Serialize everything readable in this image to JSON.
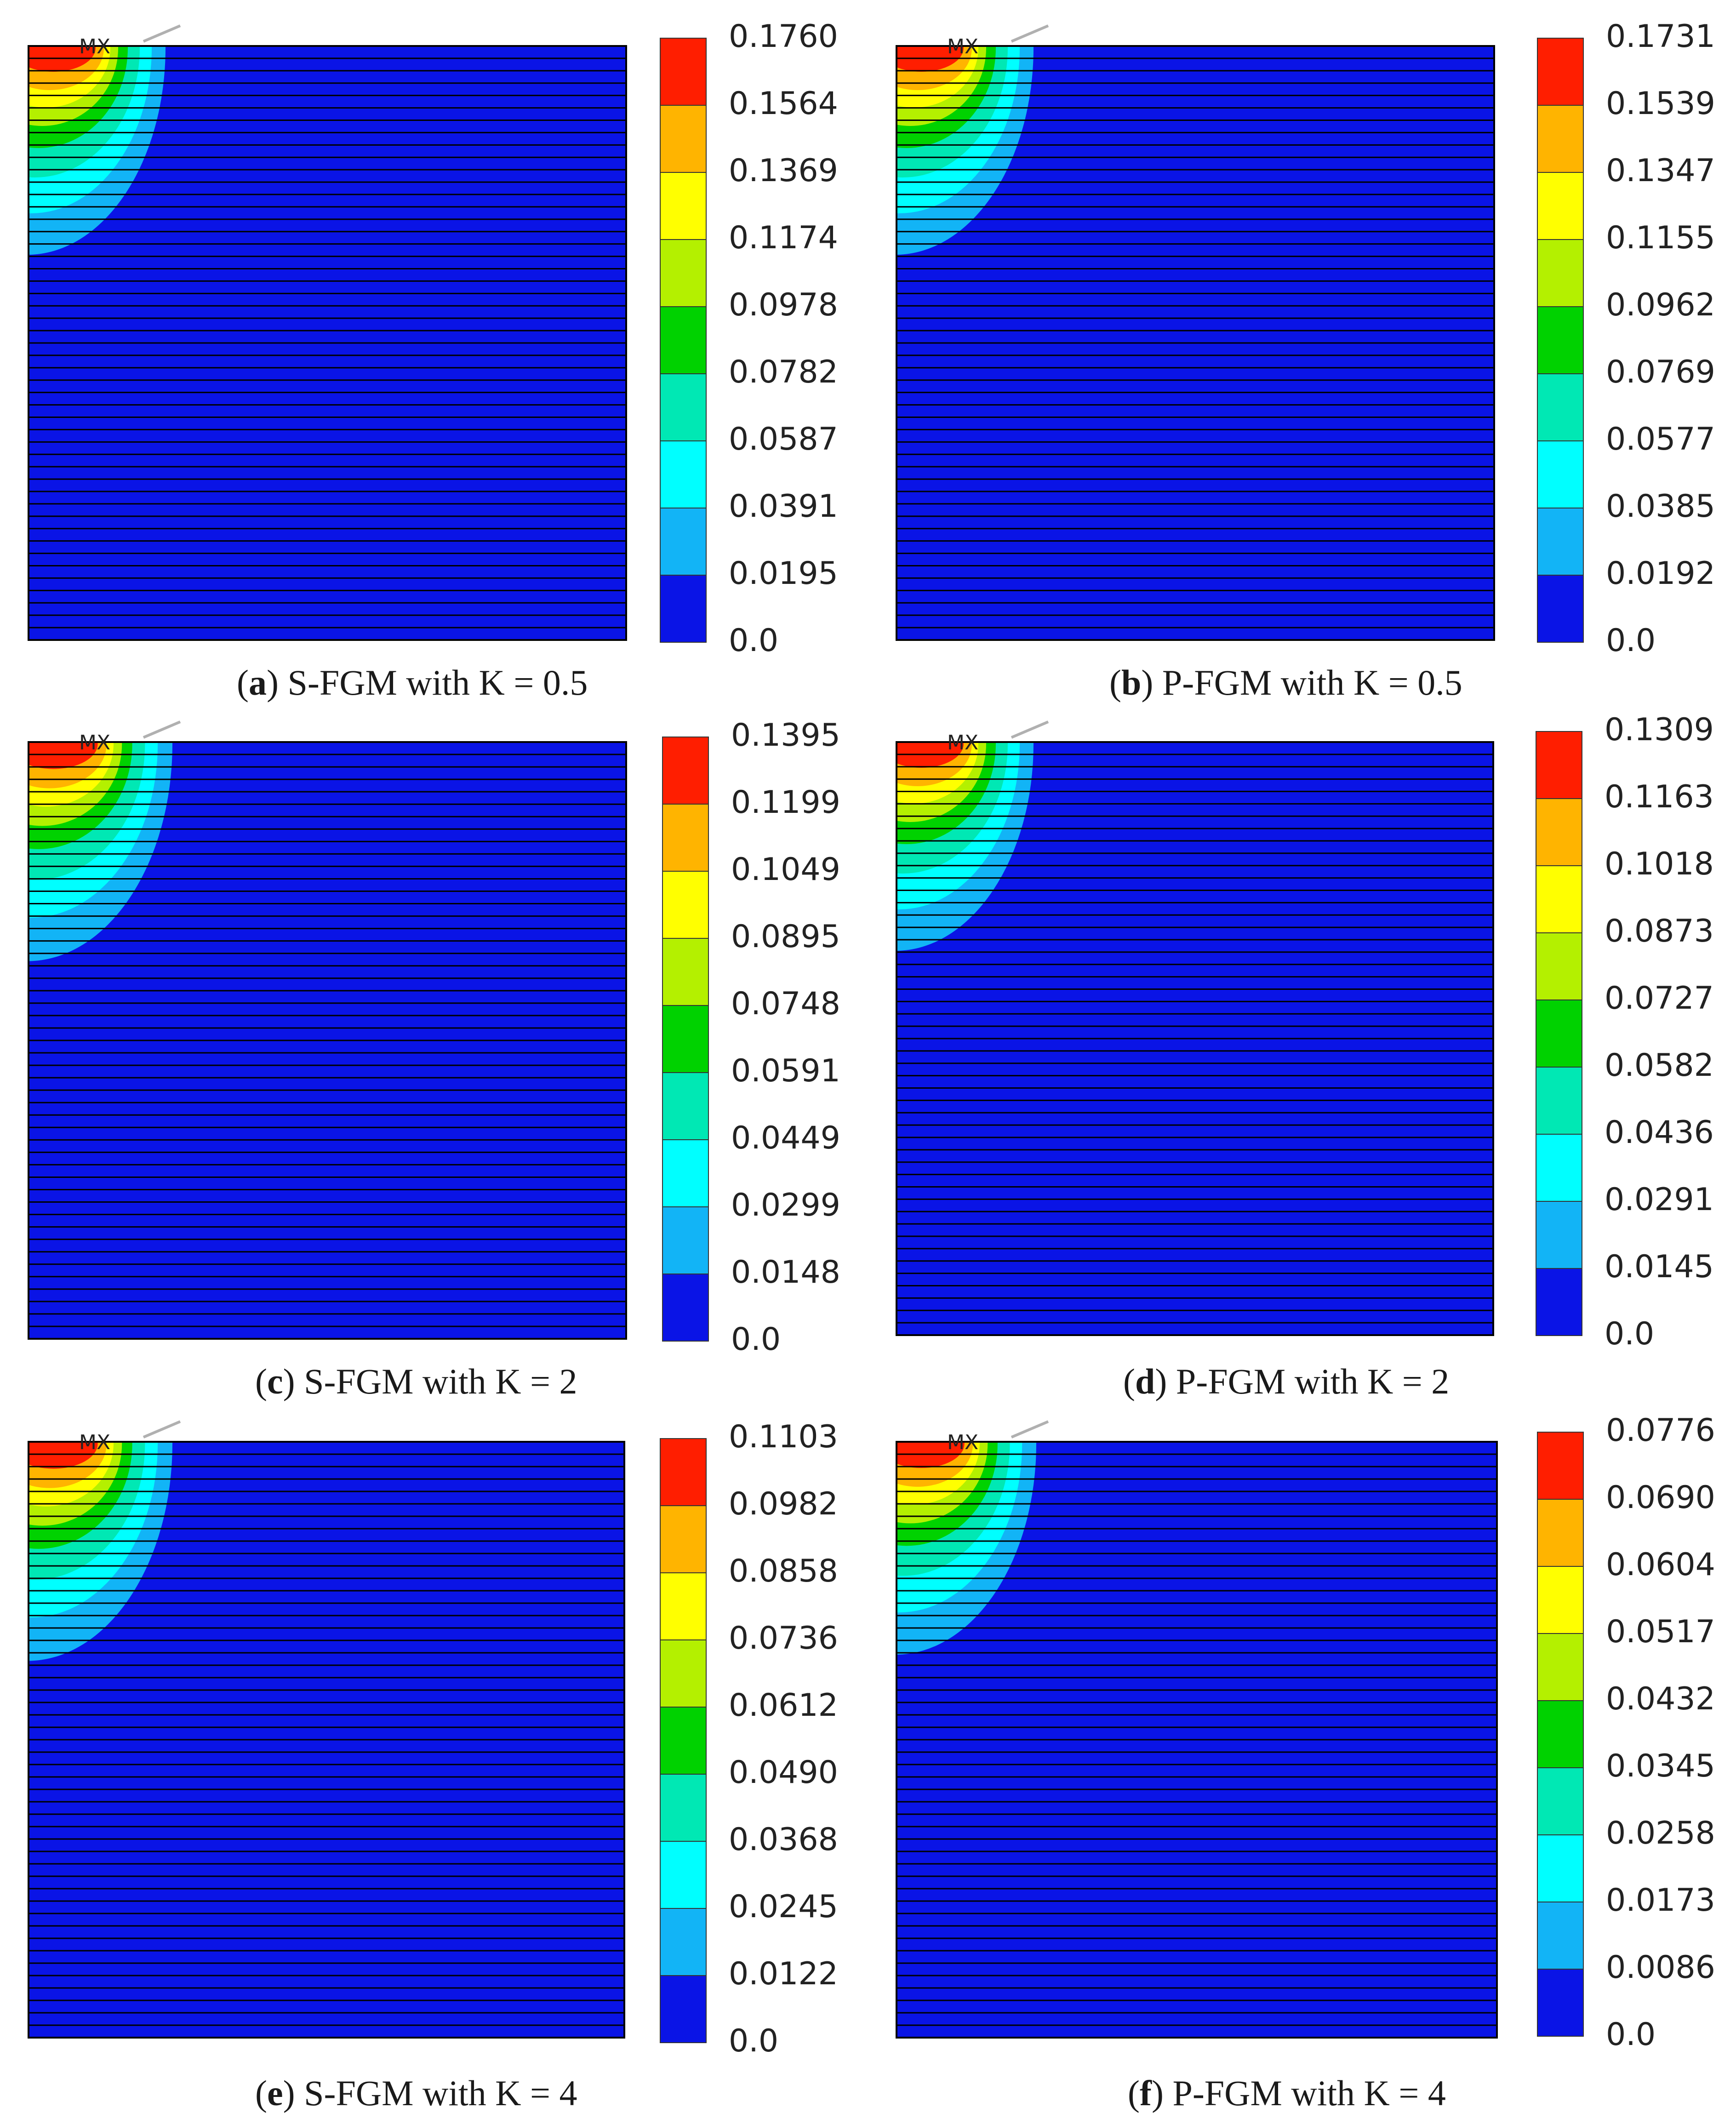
{
  "colors": {
    "background": "#ffffff",
    "mesh_fill": "#0a14e6",
    "mesh_line": "#000000",
    "levels": [
      "#0a14e6",
      "#12b4f6",
      "#00ffff",
      "#00e8b4",
      "#00d200",
      "#b4f000",
      "#ffff00",
      "#ffb400",
      "#ff1e00"
    ]
  },
  "marker_text": "MX",
  "panels": [
    {
      "id": "a",
      "letter": "a",
      "caption_rest": ") S-FGM with K = 0.5",
      "legend_values": [
        "0.1760",
        "0.1564",
        "0.1369",
        "0.1174",
        "0.0978",
        "0.0782",
        "0.0587",
        "0.0391",
        "0.0195",
        "0.0"
      ]
    },
    {
      "id": "b",
      "letter": "b",
      "caption_rest": ") P-FGM with K = 0.5",
      "legend_values": [
        "0.1731",
        "0.1539",
        "0.1347",
        "0.1155",
        "0.0962",
        "0.0769",
        "0.0577",
        "0.0385",
        "0.0192",
        "0.0"
      ]
    },
    {
      "id": "c",
      "letter": "c",
      "caption_rest": ") S-FGM with K = 2",
      "legend_values": [
        "0.1395",
        "0.1199",
        "0.1049",
        "0.0895",
        "0.0748",
        "0.0591",
        "0.0449",
        "0.0299",
        "0.0148",
        "0.0"
      ]
    },
    {
      "id": "d",
      "letter": "d",
      "caption_rest": ") P-FGM with K = 2",
      "legend_values": [
        "0.1309",
        "0.1163",
        "0.1018",
        "0.0873",
        "0.0727",
        "0.0582",
        "0.0436",
        "0.0291",
        "0.0145",
        "0.0"
      ]
    },
    {
      "id": "e",
      "letter": "e",
      "caption_rest": ") S-FGM with K = 4",
      "legend_values": [
        "0.1103",
        "0.0982",
        "0.0858",
        "0.0736",
        "0.0612",
        "0.0490",
        "0.0368",
        "0.0245",
        "0.0122",
        "0.0"
      ]
    },
    {
      "id": "f",
      "letter": "f",
      "caption_rest": ") P-FGM with K = 4",
      "legend_values": [
        "0.0776",
        "0.0690",
        "0.0604",
        "0.0517",
        "0.0432",
        "0.0345",
        "0.0258",
        "0.0173",
        "0.0086",
        "0.0"
      ]
    }
  ]
}
